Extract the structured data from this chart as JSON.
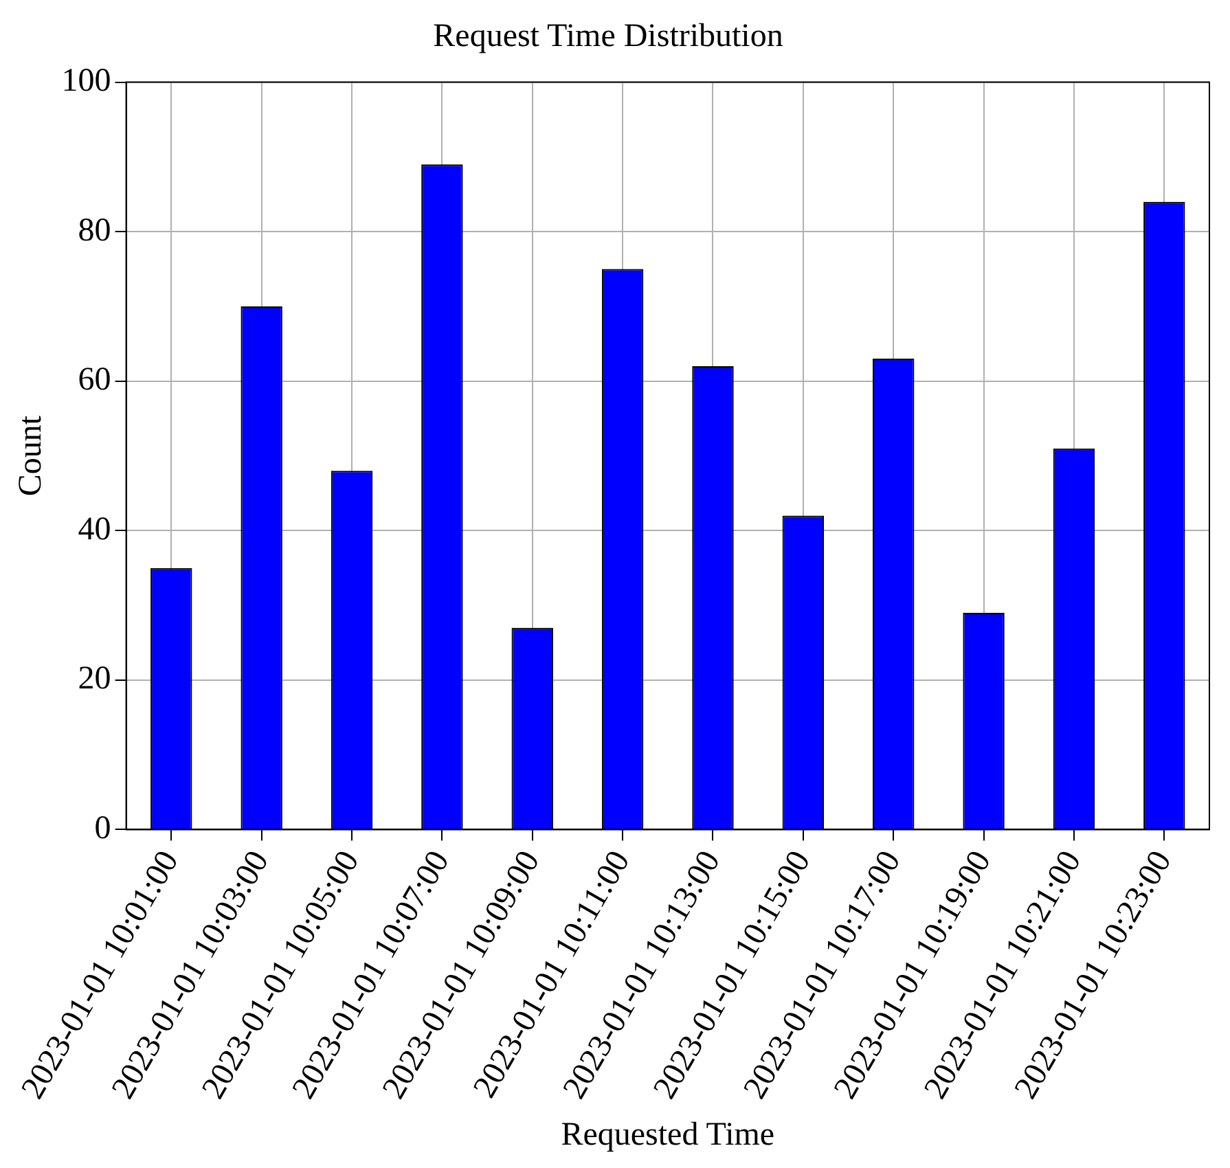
{
  "chart_data": {
    "type": "bar",
    "title": "Request Time Distribution",
    "xlabel": "Requested Time",
    "ylabel": "Count",
    "categories": [
      "2023-01-01 10:01:00",
      "2023-01-01 10:03:00",
      "2023-01-01 10:05:00",
      "2023-01-01 10:07:00",
      "2023-01-01 10:09:00",
      "2023-01-01 10:11:00",
      "2023-01-01 10:13:00",
      "2023-01-01 10:15:00",
      "2023-01-01 10:17:00",
      "2023-01-01 10:19:00",
      "2023-01-01 10:21:00",
      "2023-01-01 10:23:00"
    ],
    "values": [
      35,
      70,
      48,
      89,
      27,
      75,
      62,
      42,
      63,
      29,
      51,
      84
    ],
    "color": "#0000ff",
    "ylim": [
      0,
      100
    ],
    "yticks": [
      0,
      20,
      40,
      60,
      80,
      100
    ],
    "grid": true
  }
}
